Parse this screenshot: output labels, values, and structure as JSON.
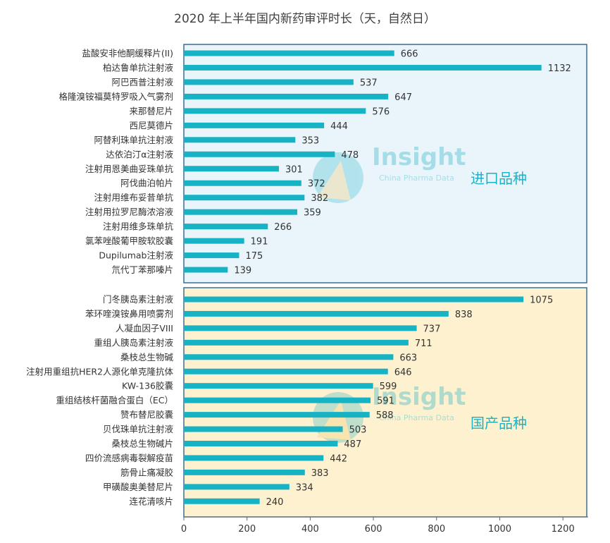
{
  "title": "2020 年上半年国内新药审评时长（天，自然日）",
  "colors": {
    "bar": "#16b3c4",
    "panel_import_fill": "#eaf5fb",
    "panel_import_border": "#3b6f96",
    "panel_domestic_fill": "#fdf1cf",
    "panel_domestic_border": "#3b6f96",
    "panel_label": "#1ab3c6"
  },
  "watermark": {
    "text": "Insight",
    "sub": "China Pharma Data"
  },
  "chart_data": [
    {
      "type": "bar",
      "orientation": "horizontal",
      "panel_label": "进口品种",
      "categories": [
        "盐酸安非他酮缓释片(II)",
        "柏达鲁单抗注射液",
        "阿巴西普注射液",
        "格隆溴铵福莫特罗吸入气雾剂",
        "来那替尼片",
        "西尼莫德片",
        "阿替利珠单抗注射液",
        "达依泊汀α注射液",
        "注射用恩美曲妥珠单抗",
        "阿伐曲泊帕片",
        "注射用维布妥昔单抗",
        "注射用拉罗尼酶浓溶液",
        "注射用维多珠单抗",
        "氯苯唑酸葡甲胺软胶囊",
        "Dupilumab注射液",
        "氘代丁苯那嗪片"
      ],
      "values": [
        666,
        1132,
        537,
        647,
        576,
        444,
        353,
        478,
        301,
        372,
        382,
        359,
        266,
        191,
        175,
        139
      ]
    },
    {
      "type": "bar",
      "orientation": "horizontal",
      "panel_label": "国产品种",
      "categories": [
        "门冬胰岛素注射液",
        "苯环喹溴铵鼻用喷雾剂",
        "人凝血因子VIII",
        "重组人胰岛素注射液",
        "桑枝总生物碱",
        "注射用重组抗HER2人源化单克隆抗体",
        "KW-136胶囊",
        "重组结核杆菌融合蛋白（EC）",
        "赞布替尼胶囊",
        "贝伐珠单抗注射液",
        "桑枝总生物碱片",
        "四价流感病毒裂解疫苗",
        "筋骨止痛凝胶",
        "甲磺酸奥美替尼片",
        "连花清咳片"
      ],
      "values": [
        1075,
        838,
        737,
        711,
        663,
        646,
        599,
        591,
        588,
        503,
        487,
        442,
        383,
        334,
        240
      ]
    }
  ],
  "x_axis": {
    "ticks": [
      "0",
      "200",
      "400",
      "600",
      "800",
      "1000",
      "1200"
    ],
    "xlim": [
      0,
      1280
    ]
  }
}
